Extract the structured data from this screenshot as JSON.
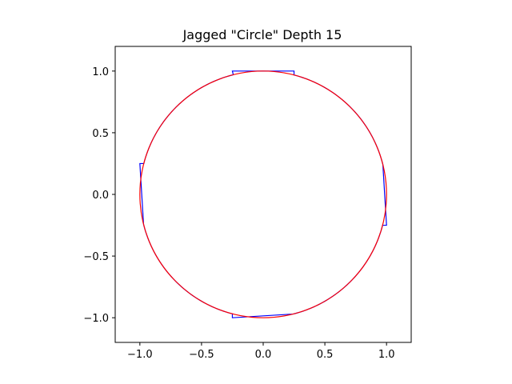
{
  "chart_data": {
    "type": "line",
    "title": "Jagged \"Circle\" Depth 15",
    "xlabel": "",
    "ylabel": "",
    "xlim": [
      -1.2,
      1.2
    ],
    "ylim": [
      -1.2,
      1.2
    ],
    "grid": false,
    "x_ticks": [
      -1.0,
      -0.5,
      0.0,
      0.5,
      1.0
    ],
    "x_tick_labels": [
      "−1.0",
      "−0.5",
      "0.0",
      "0.5",
      "1.0"
    ],
    "y_ticks": [
      1.0,
      0.5,
      0.0,
      -0.5,
      -1.0
    ],
    "y_tick_labels": [
      "1.0",
      "0.5",
      "0.0",
      "−0.5",
      "−1.0"
    ],
    "series": [
      {
        "shape": "jagged-circle",
        "color": "#0000ff",
        "depth": 15,
        "radius": 1.0,
        "corner_points": [
          [
            -0.25,
            1.0
          ],
          [
            0.25,
            1.0
          ],
          [
            0.25,
            0.968
          ],
          [
            1.0,
            0.25
          ],
          [
            1.0,
            -0.25
          ],
          [
            0.968,
            -0.25
          ],
          [
            0.25,
            -1.0
          ],
          [
            -0.25,
            -1.0
          ],
          [
            -0.25,
            -0.968
          ],
          [
            -1.0,
            -0.25
          ],
          [
            -1.0,
            0.25
          ],
          [
            -0.968,
            0.25
          ]
        ]
      },
      {
        "shape": "circle",
        "color": "#ff0000",
        "center": [
          0.0,
          0.0
        ],
        "radius": 1.0
      }
    ]
  }
}
